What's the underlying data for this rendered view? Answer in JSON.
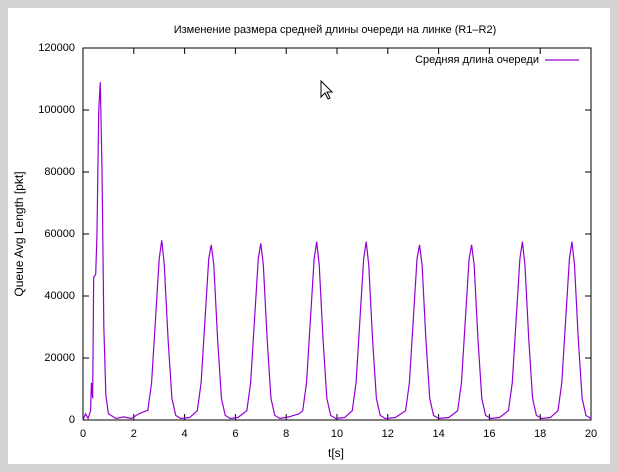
{
  "chart_data": {
    "type": "line",
    "title": "Изменение размера средней длины очереди на линке (R1–R2)",
    "x_label": "t[s]",
    "y_label": "Queue Avg Length [pkt]",
    "x": [
      0,
      0.1,
      0.2,
      0.3,
      0.33,
      0.38,
      0.42,
      0.5,
      0.55,
      0.62,
      0.68,
      0.75,
      0.82,
      0.9,
      1.0,
      1.3,
      1.6,
      1.9,
      2.2,
      2.5,
      2.55,
      2.7,
      2.85,
      3.0,
      3.1,
      3.2,
      3.35,
      3.5,
      3.65,
      3.85,
      4.2,
      4.5,
      4.65,
      4.8,
      4.95,
      5.05,
      5.15,
      5.3,
      5.45,
      5.6,
      5.8,
      6.1,
      6.45,
      6.6,
      6.75,
      6.9,
      7.0,
      7.1,
      7.25,
      7.4,
      7.55,
      7.75,
      8.1,
      8.5,
      8.65,
      8.8,
      8.95,
      9.1,
      9.2,
      9.3,
      9.45,
      9.6,
      9.75,
      9.95,
      10.3,
      10.6,
      10.75,
      10.9,
      11.05,
      11.15,
      11.25,
      11.4,
      11.55,
      11.7,
      11.9,
      12.3,
      12.7,
      12.85,
      13.0,
      13.15,
      13.25,
      13.35,
      13.5,
      13.65,
      13.8,
      14.0,
      14.4,
      14.75,
      14.9,
      15.05,
      15.2,
      15.3,
      15.4,
      15.55,
      15.7,
      15.85,
      16.05,
      16.4,
      16.75,
      16.9,
      17.05,
      17.2,
      17.3,
      17.4,
      17.55,
      17.7,
      17.85,
      18.05,
      18.4,
      18.7,
      18.85,
      19.0,
      19.15,
      19.25,
      19.35,
      19.5,
      19.65,
      19.8,
      20
    ],
    "series": [
      {
        "name": "Средняя длина очереди",
        "color": "#9400d3",
        "values": [
          0,
          2000,
          500,
          3000,
          12000,
          7000,
          46000,
          47000,
          60000,
          100000,
          109000,
          80000,
          30000,
          8000,
          2000,
          500,
          1000,
          500,
          2000,
          3000,
          3000,
          12000,
          32000,
          52000,
          58000,
          50000,
          26000,
          7000,
          1500,
          500,
          800,
          3000,
          12000,
          32000,
          52000,
          56500,
          50000,
          26000,
          7000,
          1500,
          500,
          800,
          3000,
          12000,
          32000,
          52000,
          57000,
          50000,
          26000,
          7000,
          1500,
          500,
          1000,
          2000,
          3000,
          12000,
          32000,
          52000,
          57500,
          50000,
          26000,
          7000,
          1500,
          500,
          800,
          3000,
          12000,
          32000,
          52000,
          57500,
          50000,
          26000,
          7000,
          1500,
          500,
          800,
          3000,
          12000,
          32000,
          52000,
          56500,
          50000,
          26000,
          7000,
          1500,
          500,
          800,
          3000,
          12000,
          32000,
          52000,
          56500,
          50000,
          26000,
          7000,
          1500,
          500,
          800,
          3000,
          12000,
          32000,
          52000,
          57500,
          50000,
          26000,
          7000,
          1500,
          500,
          800,
          3000,
          12000,
          32000,
          52000,
          57500,
          50000,
          26000,
          7000,
          1500,
          500
        ]
      }
    ],
    "xlim": [
      0,
      20
    ],
    "xticks": [
      0,
      2,
      4,
      6,
      8,
      10,
      12,
      14,
      16,
      18,
      20
    ],
    "ylim": [
      0,
      120000
    ],
    "yticks": [
      0,
      20000,
      40000,
      60000,
      80000,
      100000,
      120000
    ],
    "legend": "top-right",
    "grid": false
  }
}
